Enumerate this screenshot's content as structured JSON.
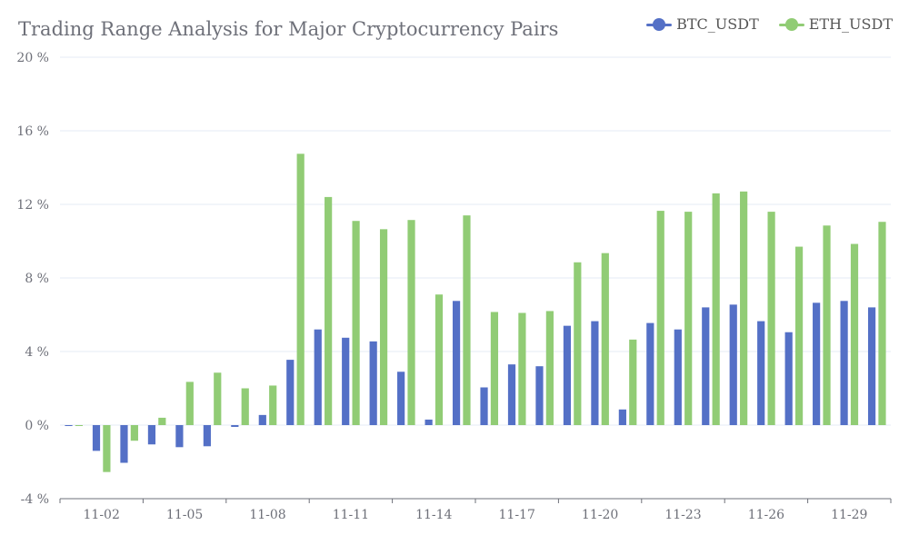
{
  "chart_data": {
    "type": "bar",
    "title": "Trading Range Analysis for Major Cryptocurrency Pairs",
    "xlabel": "",
    "ylabel": "",
    "ylim": [
      -4,
      20
    ],
    "y_ticks": [
      "-4 %",
      "0 %",
      "4 %",
      "8 %",
      "12 %",
      "16 %",
      "20 %"
    ],
    "y_tick_values": [
      -4,
      0,
      4,
      8,
      12,
      16,
      20
    ],
    "grid": true,
    "legend_position": "top-right",
    "categories": [
      "11-01",
      "11-02",
      "11-03",
      "11-04",
      "11-05",
      "11-06",
      "11-07",
      "11-08",
      "11-09",
      "11-10",
      "11-11",
      "11-12",
      "11-13",
      "11-14",
      "11-15",
      "11-16",
      "11-17",
      "11-18",
      "11-19",
      "11-20",
      "11-21",
      "11-22",
      "11-23",
      "11-24",
      "11-25",
      "11-26",
      "11-27",
      "11-28",
      "11-29",
      "11-30"
    ],
    "x_tick_labels": [
      "11-02",
      "11-05",
      "11-08",
      "11-11",
      "11-14",
      "11-17",
      "11-20",
      "11-23",
      "11-26",
      "11-29"
    ],
    "x_tick_label_indices": [
      1,
      4,
      7,
      10,
      13,
      16,
      19,
      22,
      25,
      28
    ],
    "series": [
      {
        "name": "BTC_USDT",
        "color": "#5470c6",
        "values": [
          -0.05,
          -1.4,
          -2.05,
          -1.05,
          -1.2,
          -1.15,
          -0.1,
          0.55,
          3.55,
          5.2,
          4.75,
          4.55,
          2.9,
          0.3,
          6.75,
          2.05,
          3.3,
          3.2,
          5.4,
          5.65,
          0.85,
          5.55,
          5.2,
          6.4,
          6.55,
          5.65,
          5.05,
          6.65,
          6.75,
          6.4
        ]
      },
      {
        "name": "ETH_USDT",
        "color": "#91cc75",
        "values": [
          -0.05,
          -2.55,
          -0.85,
          0.4,
          2.35,
          2.85,
          2.0,
          2.15,
          14.75,
          12.4,
          11.1,
          10.65,
          11.15,
          7.1,
          11.4,
          6.15,
          6.1,
          6.2,
          8.85,
          9.35,
          4.65,
          11.65,
          11.6,
          12.6,
          12.7,
          11.6,
          9.7,
          10.85,
          9.85,
          11.05
        ]
      }
    ]
  }
}
